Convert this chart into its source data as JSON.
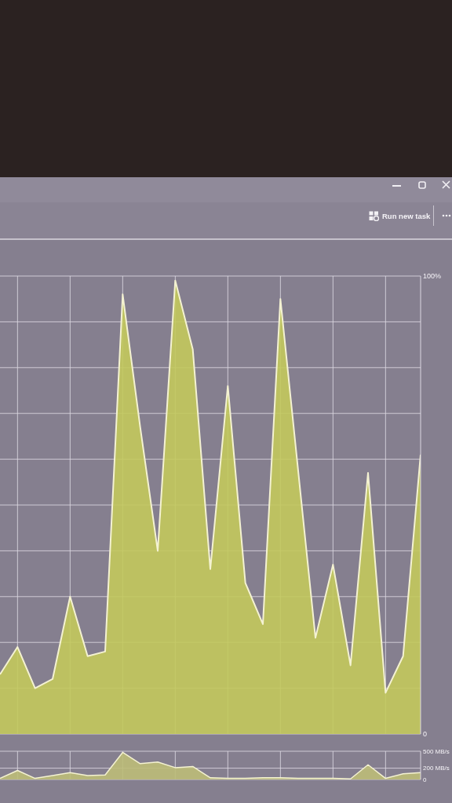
{
  "chart_data": [
    {
      "type": "area",
      "annotations": [
        "Run new task"
      ],
      "categories": [
        null,
        null,
        null,
        null,
        null,
        null,
        null,
        null,
        null,
        null,
        null,
        null,
        null,
        null,
        null,
        null,
        null,
        null,
        null,
        null,
        null,
        null,
        null,
        null,
        null
      ],
      "series": [
        {
          "color": "#c3c95c",
          "values": [
            13,
            19,
            10,
            12,
            30,
            17,
            18,
            96,
            67,
            40,
            99,
            84,
            36,
            76,
            33,
            24,
            95,
            58,
            21,
            37,
            15,
            57,
            9,
            17,
            61
          ]
        }
      ],
      "ylim": [
        0,
        100
      ],
      "yticks": [
        {
          "value": 0,
          "label": "0"
        },
        {
          "value": 10,
          "label": null
        },
        {
          "value": 20,
          "label": null
        },
        {
          "value": 30,
          "label": null
        },
        {
          "value": 40,
          "label": null
        },
        {
          "value": 50,
          "label": null
        },
        {
          "value": 60,
          "label": null
        },
        {
          "value": 70,
          "label": null
        },
        {
          "value": 80,
          "label": null
        },
        {
          "value": 90,
          "label": null
        },
        {
          "value": 100,
          "label": "100%"
        }
      ],
      "grid": true,
      "tick_labels": "y"
    },
    {
      "type": "area",
      "categories": [
        null,
        null,
        null,
        null,
        null,
        null,
        null,
        null,
        null,
        null,
        null,
        null,
        null,
        null,
        null,
        null,
        null,
        null,
        null,
        null,
        null,
        null,
        null,
        null,
        null
      ],
      "series": [
        {
          "color": "#bdbd78",
          "values": [
            20,
            160,
            20,
            70,
            120,
            70,
            80,
            480,
            280,
            310,
            210,
            230,
            30,
            20,
            20,
            30,
            30,
            20,
            20,
            20,
            10,
            260,
            20,
            100,
            120
          ]
        }
      ],
      "ylim": [
        0,
        500
      ],
      "yticks": [
        {
          "value": 0,
          "label": "0"
        },
        {
          "value": 200,
          "label": "200 MB/s"
        },
        {
          "value": 500,
          "label": "500 MB/s"
        }
      ],
      "grid": true,
      "tick_labels": "y"
    }
  ]
}
